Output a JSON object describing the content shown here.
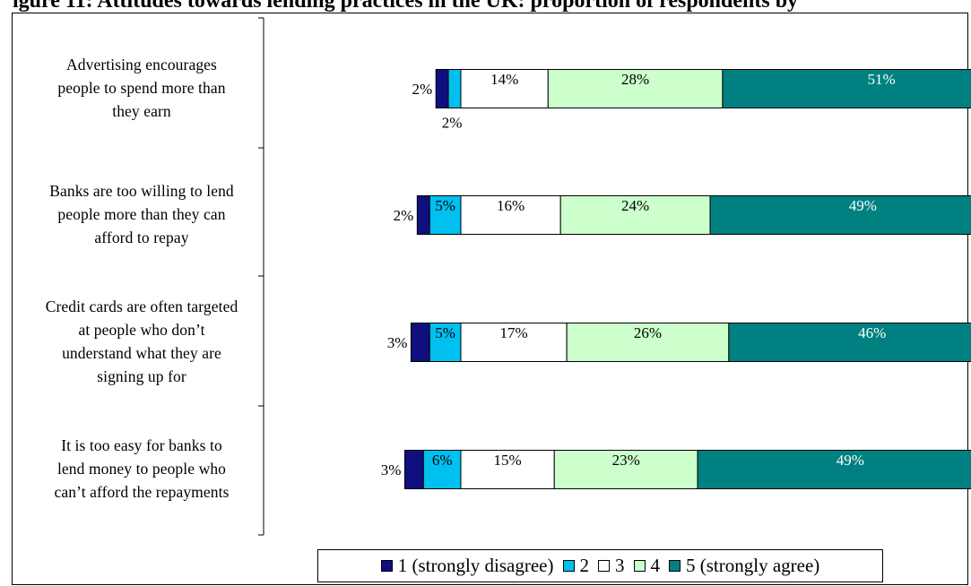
{
  "title": "igure 11: Attitudes towards lending practices in the UK: proportion of respondents by",
  "chart_data": {
    "type": "bar",
    "orientation": "horizontal",
    "stacked": true,
    "categories": [
      "Advertising encourages people to spend more than they earn",
      "Banks are too willing to lend people more than they can afford to repay",
      "Credit cards are often targeted at people who don't understand what they are signing up for",
      "It is too easy for banks to lend money to people who can't afford the repayments"
    ],
    "category_lines": [
      [
        "Advertising encourages",
        "people to spend more than",
        "they earn"
      ],
      [
        "Banks are too willing to lend",
        "people more than they can",
        "afford to repay"
      ],
      [
        "Credit cards are often targeted",
        "at people who don’t",
        "understand what they are",
        "signing up for"
      ],
      [
        "It is too easy for banks to",
        "lend money to people who",
        "can’t afford the repayments"
      ]
    ],
    "series": [
      {
        "name": "1 (strongly disagree)",
        "color": "#0f0f80",
        "values": [
          2,
          2,
          3,
          3
        ]
      },
      {
        "name": "2",
        "color": "#00c0f0",
        "values": [
          2,
          5,
          5,
          6
        ]
      },
      {
        "name": "3",
        "color": "#ffffff",
        "values": [
          14,
          16,
          17,
          15
        ]
      },
      {
        "name": "4",
        "color": "#ccffcc",
        "values": [
          28,
          24,
          26,
          23
        ]
      },
      {
        "name": "5 (strongly agree)",
        "color": "#008080",
        "values": [
          51,
          49,
          46,
          49
        ]
      }
    ],
    "data_labels": [
      [
        "2%",
        "2%",
        "14%",
        "28%",
        "51%"
      ],
      [
        "2%",
        "5%",
        "16%",
        "24%",
        "49%"
      ],
      [
        "3%",
        "5%",
        "17%",
        "26%",
        "46%"
      ],
      [
        "3%",
        "6%",
        "15%",
        "23%",
        "49%"
      ]
    ],
    "legend_position": "bottom",
    "gridlines": false
  }
}
